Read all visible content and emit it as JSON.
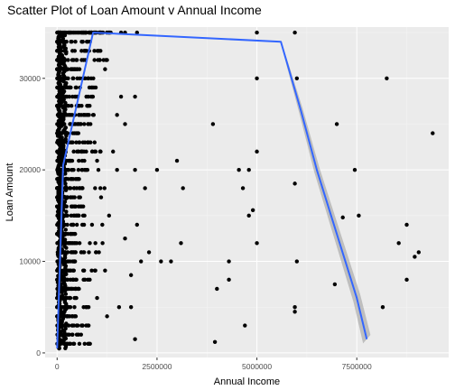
{
  "chart_data": {
    "type": "scatter",
    "title": "Scatter Plot of Loan Amount v Annual Income",
    "xlabel": "Annual Income",
    "ylabel": "Loan Amount",
    "xlim": [
      -300000,
      9800000
    ],
    "ylim": [
      -500,
      35600
    ],
    "x_ticks": [
      0,
      2500000,
      5000000,
      7500000
    ],
    "x_tick_labels": [
      "0",
      "2500000",
      "5000000",
      "7500000"
    ],
    "y_ticks": [
      0,
      10000,
      20000,
      30000
    ],
    "y_tick_labels": [
      "0",
      "10000",
      "20000",
      "30000"
    ],
    "grid": true,
    "legend": "none",
    "colors": {
      "panel_background": "#ebebeb",
      "grid_major": "#ffffff",
      "points": "#000000",
      "smooth_line": "#3366ff",
      "confidence_band": "#999999"
    },
    "points": [
      [
        950000,
        35000
      ],
      [
        1150000,
        35000
      ],
      [
        1300000,
        35000
      ],
      [
        1600000,
        35000
      ],
      [
        1700000,
        35000
      ],
      [
        5000000,
        35000
      ],
      [
        5950000,
        35000
      ],
      [
        2000000,
        35000
      ],
      [
        1200000,
        31000
      ],
      [
        1600000,
        28000
      ],
      [
        1950000,
        28000
      ],
      [
        1700000,
        25000
      ],
      [
        1500000,
        26000
      ],
      [
        1400000,
        22000
      ],
      [
        1950000,
        20000
      ],
      [
        2500000,
        20000
      ],
      [
        3000000,
        21000
      ],
      [
        3150000,
        18000
      ],
      [
        2200000,
        18000
      ],
      [
        2000000,
        14000
      ],
      [
        1850000,
        8500
      ],
      [
        1550000,
        5000
      ],
      [
        1250000,
        4000
      ],
      [
        2600000,
        10000
      ],
      [
        2850000,
        10000
      ],
      [
        3100000,
        12000
      ],
      [
        2100000,
        10000
      ],
      [
        2300000,
        11000
      ],
      [
        1850000,
        5000
      ],
      [
        1950000,
        1500
      ],
      [
        1700000,
        12500
      ],
      [
        1500000,
        20000
      ],
      [
        1100000,
        17000
      ],
      [
        1000000,
        21000
      ],
      [
        900000,
        26000
      ],
      [
        1300000,
        15000
      ],
      [
        1200000,
        9000
      ],
      [
        1000000,
        6000
      ],
      [
        5000000,
        30000
      ],
      [
        6000000,
        30000
      ],
      [
        8250000,
        30000
      ],
      [
        9400000,
        24000
      ],
      [
        7000000,
        25000
      ],
      [
        3900000,
        25000
      ],
      [
        4550000,
        20000
      ],
      [
        4800000,
        20000
      ],
      [
        5000000,
        22000
      ],
      [
        7450000,
        20000
      ],
      [
        4650000,
        18000
      ],
      [
        5950000,
        18500
      ],
      [
        4900000,
        15600
      ],
      [
        4800000,
        15000
      ],
      [
        7550000,
        15000
      ],
      [
        7150000,
        14800
      ],
      [
        8750000,
        14000
      ],
      [
        5000000,
        12000
      ],
      [
        8550000,
        12000
      ],
      [
        9050000,
        11000
      ],
      [
        8950000,
        10500
      ],
      [
        4300000,
        10000
      ],
      [
        6000000,
        10000
      ],
      [
        4000000,
        7000
      ],
      [
        4300000,
        8000
      ],
      [
        8750000,
        8000
      ],
      [
        6950000,
        7500
      ],
      [
        8150000,
        5000
      ],
      [
        5950000,
        5000
      ],
      [
        5950000,
        4500
      ],
      [
        4700000,
        3000
      ],
      [
        3950000,
        1200
      ]
    ],
    "dense_band": {
      "x_range": [
        0,
        1300000
      ],
      "y_values": [
        1000,
        2000,
        3000,
        4000,
        5000,
        6000,
        7000,
        8000,
        9000,
        10000,
        11000,
        12000,
        13000,
        14000,
        15000,
        16000,
        17000,
        18000,
        19000,
        20000,
        21000,
        22000,
        23000,
        24000,
        25000,
        26000,
        27000,
        28000,
        29000,
        30000,
        31000,
        32000,
        33000,
        34000,
        35000
      ]
    },
    "smooth_line": {
      "x": [
        0,
        150000,
        900000,
        5600000,
        5800000,
        6100000,
        6500000,
        7000000,
        7500000,
        7750000
      ],
      "y": [
        500,
        20500,
        35000,
        34000,
        31000,
        26500,
        20000,
        13000,
        6000,
        1500
      ]
    },
    "confidence_band": {
      "x": [
        5600000,
        5800000,
        6100000,
        6500000,
        7000000,
        7500000,
        7750000
      ],
      "half_width": [
        200,
        600,
        1100,
        1500,
        1800,
        2100,
        2300
      ]
    }
  }
}
